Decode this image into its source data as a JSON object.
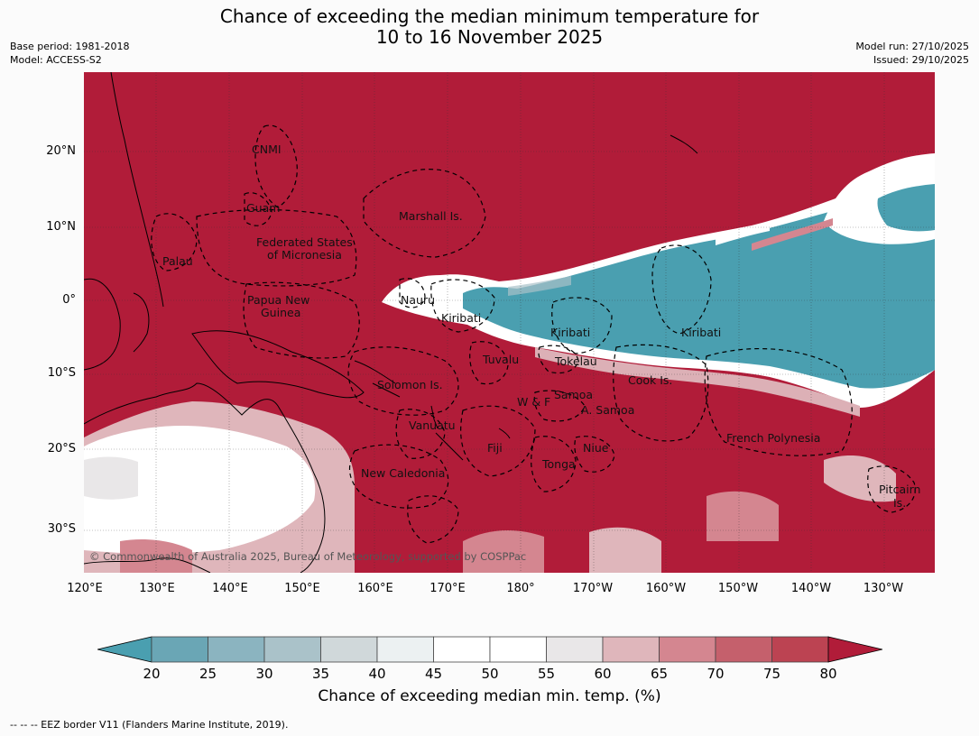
{
  "title_line1": "Chance of exceeding the median minimum temperature for",
  "title_line2": "10 to 16 November 2025",
  "meta_left": [
    "Base period: 1981-2018",
    "Model: ACCESS-S2"
  ],
  "meta_right": [
    "Model run: 27/10/2025",
    "Issued: 29/10/2025"
  ],
  "lat_ticks": [
    "20°N",
    "10°N",
    "0°",
    "10°S",
    "20°S",
    "30°S"
  ],
  "lon_ticks": [
    "120°E",
    "130°E",
    "140°E",
    "150°E",
    "160°E",
    "170°E",
    "180°",
    "170°W",
    "160°W",
    "150°W",
    "140°W",
    "130°W"
  ],
  "regions": [
    "CNMI",
    "Guam",
    "Marshall Is.",
    "Federated States",
    "of Micronesia",
    "Palau",
    "Nauru",
    "Papua New",
    "Guinea",
    "Kiribati",
    "Kiribati",
    "Kiribati",
    "Tuvalu",
    "Tokelau",
    "Cook Is.",
    "Solomon Is.",
    "Samoa",
    "W & F",
    "A. Samoa",
    "Vanuatu",
    "Fiji",
    "Niue",
    "French Polynesia",
    "Tonga",
    "New Caledonia",
    "Pitcairn",
    "Is."
  ],
  "copyright": "© Commonwealth of Australia 2025, Bureau of Meteorology, supported by COSPPac",
  "colorbar": {
    "ticks": [
      "20",
      "25",
      "30",
      "35",
      "40",
      "45",
      "50",
      "55",
      "60",
      "65",
      "70",
      "75",
      "80"
    ],
    "label": "Chance of exceeding median min. temp. (%)",
    "colors": [
      "#4a9fb0",
      "#6aa6b5",
      "#8bb4c0",
      "#aac2c9",
      "#d0d8da",
      "#ecf1f2",
      "#ffffff",
      "#ffffff",
      "#e9e7e8",
      "#dfb6bb",
      "#d48690",
      "#c5606c",
      "#bc4352",
      "#b11c39"
    ]
  },
  "footer": "--  --  -- EEZ border V11 (Flanders Marine Institute, 2019)."
}
